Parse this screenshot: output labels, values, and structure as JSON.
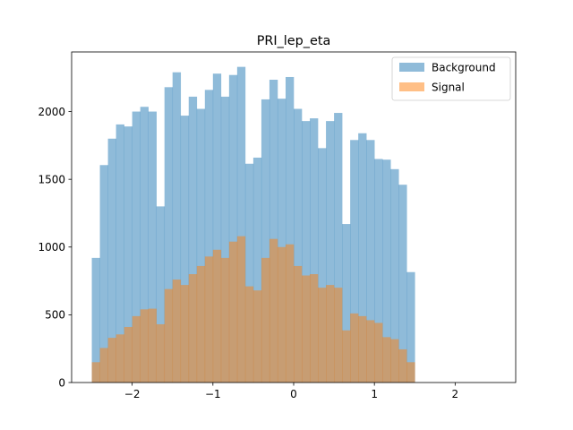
{
  "chart_data": {
    "type": "bar",
    "title": "PRI_lep_eta",
    "xlabel": "",
    "ylabel": "",
    "xlim": [
      -2.75,
      2.75
    ],
    "ylim": [
      0,
      2440
    ],
    "bin_start": -2.5,
    "bin_width": 0.1,
    "x_ticks": [
      {
        "value": -2,
        "label": "−2"
      },
      {
        "value": -1,
        "label": "−1"
      },
      {
        "value": 0,
        "label": "0"
      },
      {
        "value": 1,
        "label": "1"
      },
      {
        "value": 2,
        "label": "2"
      }
    ],
    "y_ticks": [
      {
        "value": 0,
        "label": "0"
      },
      {
        "value": 500,
        "label": "500"
      },
      {
        "value": 1000,
        "label": "1000"
      },
      {
        "value": 1500,
        "label": "1500"
      },
      {
        "value": 2000,
        "label": "2000"
      }
    ],
    "legend_position": "top-right",
    "grid": false,
    "series": [
      {
        "name": "Background",
        "color": "#1f77b4",
        "alpha": 0.5,
        "values": [
          920,
          1605,
          1800,
          1905,
          1890,
          2000,
          2035,
          2000,
          1300,
          2180,
          2290,
          1970,
          2110,
          2020,
          2160,
          2280,
          2110,
          2270,
          2330,
          1615,
          1660,
          2090,
          2235,
          2095,
          2255,
          2020,
          1930,
          1950,
          1730,
          1930,
          1990,
          1170,
          1790,
          1840,
          1790,
          1650,
          1645,
          1575,
          1460,
          815
        ]
      },
      {
        "name": "Signal",
        "color": "#ff7f0e",
        "alpha": 0.5,
        "values": [
          150,
          255,
          330,
          355,
          410,
          490,
          540,
          545,
          430,
          690,
          760,
          720,
          800,
          860,
          930,
          980,
          920,
          1040,
          1080,
          710,
          680,
          920,
          1060,
          1000,
          1020,
          860,
          790,
          800,
          700,
          720,
          700,
          385,
          510,
          490,
          460,
          440,
          335,
          320,
          245,
          150
        ]
      }
    ]
  }
}
